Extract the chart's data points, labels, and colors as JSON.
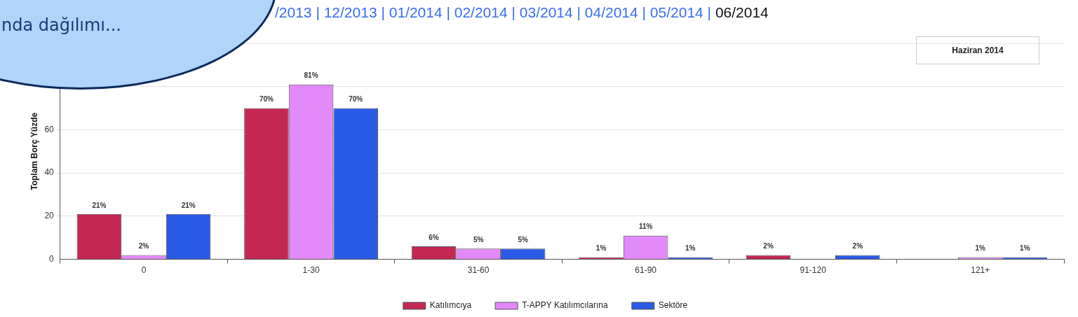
{
  "chart_data": {
    "type": "bar",
    "title": "Haziran 2014",
    "ylabel": "Toplam Borç Yüzde",
    "annotations": [
      "nda dağılımı...",
      "/2013 | 12/2013 | 01/2014 | 02/2014 | 03/2014 | 04/2014 | 05/2014 |",
      "06/2014"
    ],
    "categories": [
      "0",
      "1-30",
      "31-60",
      "61-90",
      "91-120",
      "121+"
    ],
    "series": [
      {
        "name": "Katılımcıya",
        "color": "#c42752",
        "values": [
          21,
          70,
          6,
          1,
          2,
          null
        ],
        "value_labels": [
          "21%",
          "70%",
          "6%",
          "1%",
          "2%",
          null
        ]
      },
      {
        "name": "T-APPY Katılımcılarına",
        "color": "#e28af9",
        "values": [
          2,
          81,
          5,
          11,
          null,
          1
        ],
        "value_labels": [
          "2%",
          "81%",
          "5%",
          "11%",
          null,
          "1%"
        ]
      },
      {
        "name": "Sektöre",
        "color": "#2a5ae6",
        "values": [
          21,
          70,
          5,
          1,
          2,
          1
        ],
        "value_labels": [
          "21%",
          "70%",
          "5%",
          "1%",
          "2%",
          "1%"
        ]
      }
    ],
    "ylim": [
      0,
      100
    ],
    "yticks": [
      0,
      20,
      40,
      60,
      {
        "value": 80,
        "label": null
      },
      {
        "value": 100,
        "label": null
      }
    ],
    "grid": "y",
    "legend": "bottom"
  }
}
